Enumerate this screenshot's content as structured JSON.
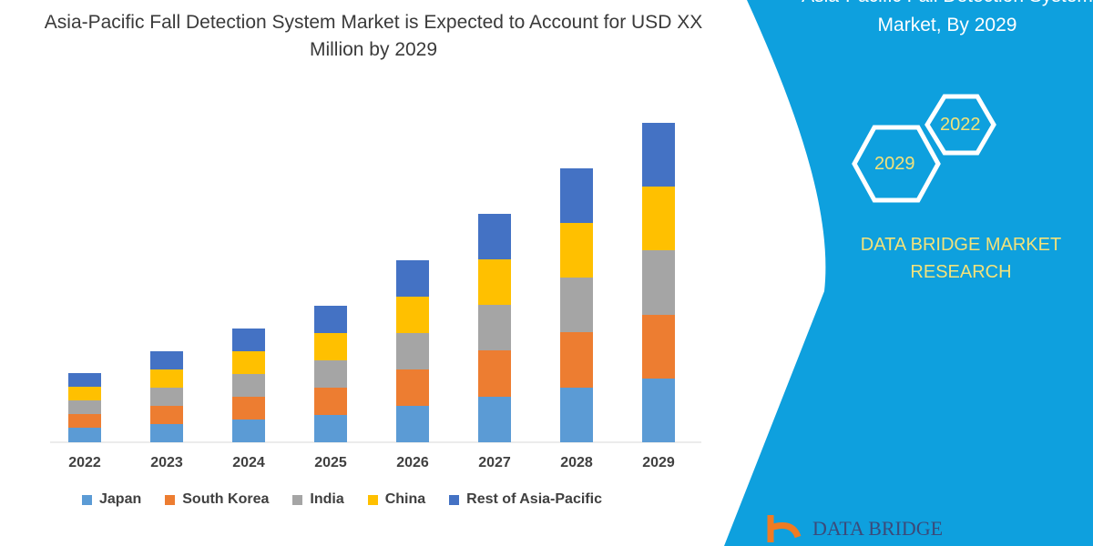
{
  "title": "Asia-Pacific Fall Detection System Market is Expected to Account for USD XX Million by 2029",
  "side_panel": {
    "title_line1": "Asia-Pacific Fall Detection System",
    "title_line2": "Market, By 2029",
    "hex_labels": [
      "2022",
      "2029"
    ],
    "brand_line1": "DATA BRIDGE MARKET",
    "brand_line2": "RESEARCH",
    "logo_text": "DATA BRIDGE",
    "panel_color": "#0ea0de",
    "accent_text_color": "#f3e27a"
  },
  "chart_data": {
    "type": "bar",
    "stacked": true,
    "title": "Asia-Pacific Fall Detection System Market is Expected to Account for USD XX Million by 2029",
    "categories": [
      "2022",
      "2023",
      "2024",
      "2025",
      "2026",
      "2027",
      "2028",
      "2029"
    ],
    "y_axis_shown": false,
    "grid": false,
    "legend_position": "bottom",
    "series": [
      {
        "name": "Japan",
        "color": "#5b9bd5",
        "values": [
          16,
          20,
          25,
          30,
          40,
          50,
          60,
          70
        ]
      },
      {
        "name": "South Korea",
        "color": "#ed7d31",
        "values": [
          15,
          20,
          25,
          30,
          40,
          51,
          61,
          70
        ]
      },
      {
        "name": "India",
        "color": "#a5a5a5",
        "values": [
          15,
          20,
          25,
          30,
          40,
          50,
          60,
          71
        ]
      },
      {
        "name": "China",
        "color": "#ffc000",
        "values": [
          15,
          20,
          25,
          30,
          40,
          50,
          60,
          70
        ]
      },
      {
        "name": "Rest of Asia-Pacific",
        "color": "#4472c4",
        "values": [
          15,
          20,
          25,
          30,
          40,
          50,
          60,
          70
        ]
      }
    ]
  }
}
